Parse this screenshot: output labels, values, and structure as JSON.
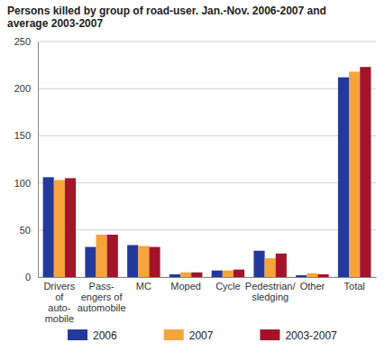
{
  "chart_data": {
    "type": "bar",
    "title": "Persons killed by group of road-user. Jan.-Nov. 2006-2007 and average 2003-2007",
    "categories": [
      "Drivers\nof\nauto-\nmobile",
      "Pass-\nengers of\nautomobile",
      "MC",
      "Moped",
      "Cycle",
      "Pedestrian/\nsledging",
      "Other",
      "Total"
    ],
    "series": [
      {
        "name": "2006",
        "color": "#233a9c",
        "values": [
          106,
          32,
          34,
          3,
          7,
          28,
          2,
          212
        ]
      },
      {
        "name": "2007",
        "color": "#f7a43a",
        "values": [
          103,
          45,
          33,
          5,
          7,
          20,
          4,
          218
        ]
      },
      {
        "name": "2003-2007",
        "color": "#a3142a",
        "values": [
          105,
          45,
          32,
          5,
          8,
          25,
          3,
          223
        ]
      }
    ],
    "ylim": [
      0,
      250
    ],
    "yticks": [
      0,
      50,
      100,
      150,
      200,
      250
    ],
    "grid": true,
    "legend": "bottom"
  }
}
